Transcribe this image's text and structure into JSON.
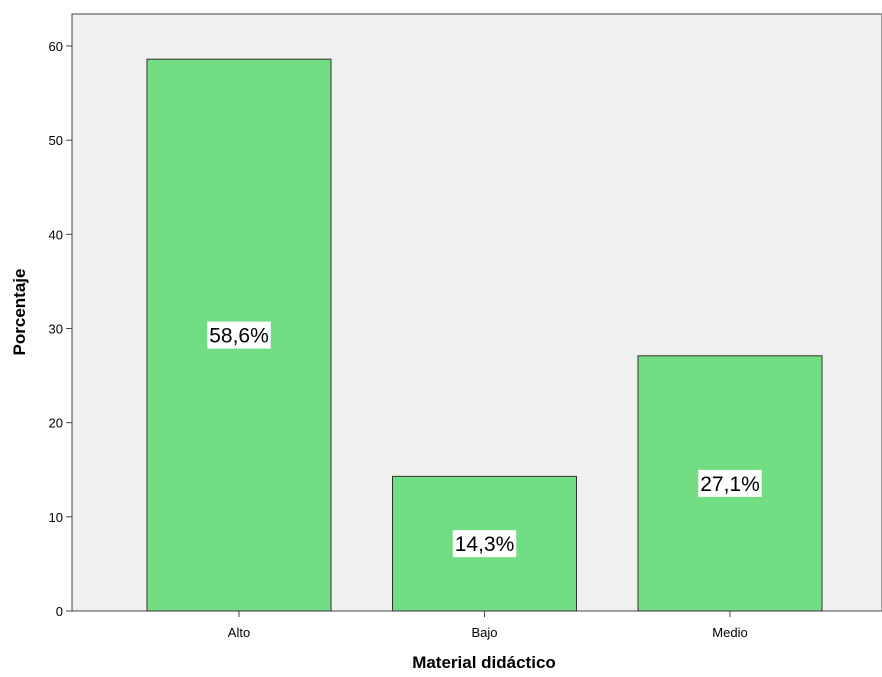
{
  "chart_data": {
    "type": "bar",
    "categories": [
      "Alto",
      "Bajo",
      "Medio"
    ],
    "values": [
      58.6,
      14.3,
      27.1
    ],
    "data_labels": [
      "58,6%",
      "14,3%",
      "27,1%"
    ],
    "xlabel": "Material didáctico",
    "ylabel": "Porcentaje",
    "ylim": [
      0,
      60
    ],
    "yticks": [
      0,
      10,
      20,
      30,
      40,
      50,
      60
    ],
    "grid": false,
    "bar_color": "#72dd82",
    "plot_background": "#f0f0f0"
  }
}
